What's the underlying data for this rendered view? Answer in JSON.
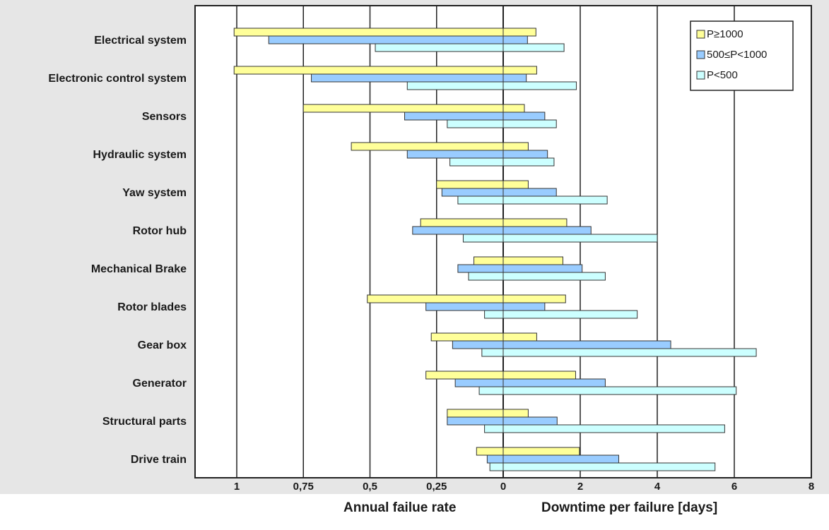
{
  "chart_data": {
    "type": "bar",
    "orientation": "horizontal",
    "layout": "back-to-back",
    "categories": [
      "Electrical system",
      "Electronic control system",
      "Sensors",
      "Hydraulic system",
      "Yaw system",
      "Rotor hub",
      "Mechanical Brake",
      "Rotor blades",
      "Gear box",
      "Generator",
      "Structural parts",
      "Drive train"
    ],
    "left_panel": {
      "xlabel": "Annual failue rate",
      "xlim": [
        0,
        1.2
      ],
      "direction": "reversed",
      "ticks": [
        1,
        0.75,
        0.5,
        0.25,
        0
      ],
      "tick_labels": [
        "1",
        "0,75",
        "0,5",
        "0,25",
        "0"
      ],
      "gridlines": [
        0.25,
        0.5,
        0.75,
        1.0
      ]
    },
    "right_panel": {
      "xlabel": "Downtime per failure [days]",
      "xlim": [
        0,
        8
      ],
      "ticks": [
        2,
        4,
        6,
        8
      ],
      "tick_labels": [
        "2",
        "4",
        "6",
        "8"
      ],
      "gridlines": [
        2,
        4,
        6
      ]
    },
    "series": [
      {
        "name": "P≥1000",
        "color": "#ffff99",
        "annual_failure_rate": [
          1.01,
          1.01,
          0.75,
          0.57,
          0.25,
          0.31,
          0.11,
          0.51,
          0.27,
          0.29,
          0.21,
          0.1
        ],
        "downtime_days": [
          0.85,
          0.87,
          0.55,
          0.65,
          0.65,
          1.65,
          1.55,
          1.62,
          0.87,
          1.88,
          0.65,
          1.98
        ]
      },
      {
        "name": "500≤P<1000",
        "color": "#99ccff",
        "annual_failure_rate": [
          0.88,
          0.72,
          0.37,
          0.36,
          0.23,
          0.34,
          0.17,
          0.29,
          0.19,
          0.18,
          0.21,
          0.06
        ],
        "downtime_days": [
          0.63,
          0.6,
          1.08,
          1.15,
          1.38,
          2.28,
          2.05,
          1.08,
          4.35,
          2.65,
          1.4,
          3.0
        ]
      },
      {
        "name": "P<500",
        "color": "#ccffff",
        "annual_failure_rate": [
          0.48,
          0.36,
          0.21,
          0.2,
          0.17,
          0.15,
          0.13,
          0.07,
          0.08,
          0.09,
          0.07,
          0.05
        ],
        "downtime_days": [
          1.58,
          1.9,
          1.38,
          1.32,
          2.7,
          4.0,
          2.65,
          3.48,
          6.57,
          6.05,
          5.75,
          5.5
        ]
      }
    ],
    "legend_position": "top-right",
    "grid": true,
    "title": ""
  }
}
